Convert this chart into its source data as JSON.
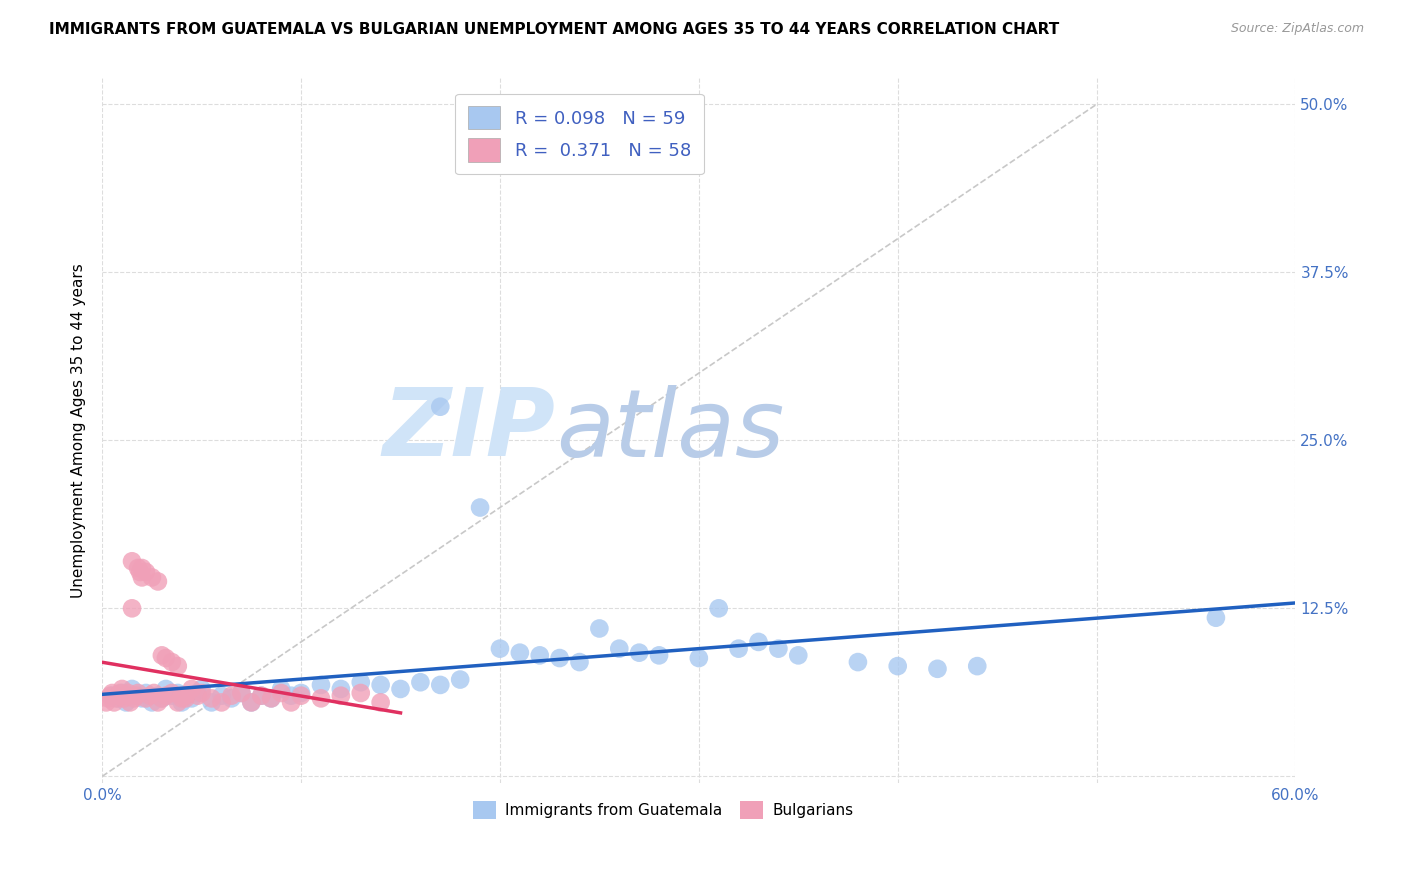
{
  "title": "IMMIGRANTS FROM GUATEMALA VS BULGARIAN UNEMPLOYMENT AMONG AGES 35 TO 44 YEARS CORRELATION CHART",
  "source": "Source: ZipAtlas.com",
  "ylabel": "Unemployment Among Ages 35 to 44 years",
  "xlim": [
    0.0,
    0.6
  ],
  "ylim": [
    -0.005,
    0.52
  ],
  "x_tick_positions": [
    0.0,
    0.1,
    0.2,
    0.3,
    0.4,
    0.5,
    0.6
  ],
  "x_tick_labels": [
    "0.0%",
    "",
    "",
    "",
    "",
    "",
    "60.0%"
  ],
  "y_tick_positions": [
    0.0,
    0.125,
    0.25,
    0.375,
    0.5
  ],
  "y_tick_labels": [
    "",
    "12.5%",
    "25.0%",
    "37.5%",
    "50.0%"
  ],
  "blue_color": "#a8c8f0",
  "pink_color": "#f0a0b8",
  "blue_line_color": "#2060c0",
  "pink_line_color": "#e03060",
  "diagonal_color": "#c8c8c8",
  "watermark_color": "#d0e4f8",
  "legend_box_color": "#e8f0fc",
  "legend_text_color": "#4060c0",
  "blue_scatter_x": [
    0.005,
    0.008,
    0.01,
    0.012,
    0.015,
    0.018,
    0.02,
    0.022,
    0.025,
    0.028,
    0.03,
    0.032,
    0.035,
    0.038,
    0.04,
    0.042,
    0.045,
    0.048,
    0.05,
    0.055,
    0.06,
    0.065,
    0.07,
    0.075,
    0.08,
    0.085,
    0.09,
    0.095,
    0.1,
    0.11,
    0.12,
    0.13,
    0.14,
    0.15,
    0.16,
    0.17,
    0.18,
    0.19,
    0.2,
    0.21,
    0.22,
    0.23,
    0.24,
    0.25,
    0.26,
    0.27,
    0.28,
    0.3,
    0.31,
    0.32,
    0.33,
    0.34,
    0.35,
    0.38,
    0.4,
    0.42,
    0.44,
    0.56,
    0.17
  ],
  "blue_scatter_y": [
    0.06,
    0.058,
    0.062,
    0.055,
    0.065,
    0.06,
    0.058,
    0.062,
    0.055,
    0.06,
    0.058,
    0.065,
    0.06,
    0.062,
    0.055,
    0.06,
    0.058,
    0.062,
    0.065,
    0.055,
    0.06,
    0.058,
    0.062,
    0.055,
    0.06,
    0.058,
    0.065,
    0.06,
    0.062,
    0.068,
    0.065,
    0.07,
    0.068,
    0.065,
    0.07,
    0.068,
    0.072,
    0.2,
    0.095,
    0.092,
    0.09,
    0.088,
    0.085,
    0.11,
    0.095,
    0.092,
    0.09,
    0.088,
    0.125,
    0.095,
    0.1,
    0.095,
    0.09,
    0.085,
    0.082,
    0.08,
    0.082,
    0.118,
    0.275
  ],
  "pink_scatter_x": [
    0.002,
    0.003,
    0.004,
    0.005,
    0.006,
    0.007,
    0.008,
    0.009,
    0.01,
    0.011,
    0.012,
    0.013,
    0.014,
    0.015,
    0.016,
    0.017,
    0.018,
    0.019,
    0.02,
    0.022,
    0.024,
    0.026,
    0.028,
    0.03,
    0.032,
    0.035,
    0.038,
    0.04,
    0.042,
    0.045,
    0.048,
    0.05,
    0.055,
    0.06,
    0.065,
    0.07,
    0.075,
    0.08,
    0.085,
    0.09,
    0.095,
    0.1,
    0.11,
    0.12,
    0.13,
    0.14,
    0.015,
    0.02,
    0.022,
    0.025,
    0.028,
    0.03,
    0.032,
    0.035,
    0.038,
    0.04,
    0.042,
    0.018
  ],
  "pink_scatter_y": [
    0.055,
    0.058,
    0.06,
    0.062,
    0.055,
    0.058,
    0.06,
    0.062,
    0.065,
    0.058,
    0.06,
    0.062,
    0.055,
    0.125,
    0.058,
    0.06,
    0.155,
    0.152,
    0.148,
    0.058,
    0.06,
    0.062,
    0.055,
    0.058,
    0.06,
    0.062,
    0.055,
    0.06,
    0.058,
    0.065,
    0.06,
    0.062,
    0.058,
    0.055,
    0.06,
    0.062,
    0.055,
    0.06,
    0.058,
    0.062,
    0.055,
    0.06,
    0.058,
    0.06,
    0.062,
    0.055,
    0.16,
    0.155,
    0.152,
    0.148,
    0.145,
    0.09,
    0.088,
    0.085,
    0.082,
    0.058,
    0.06,
    0.062
  ]
}
